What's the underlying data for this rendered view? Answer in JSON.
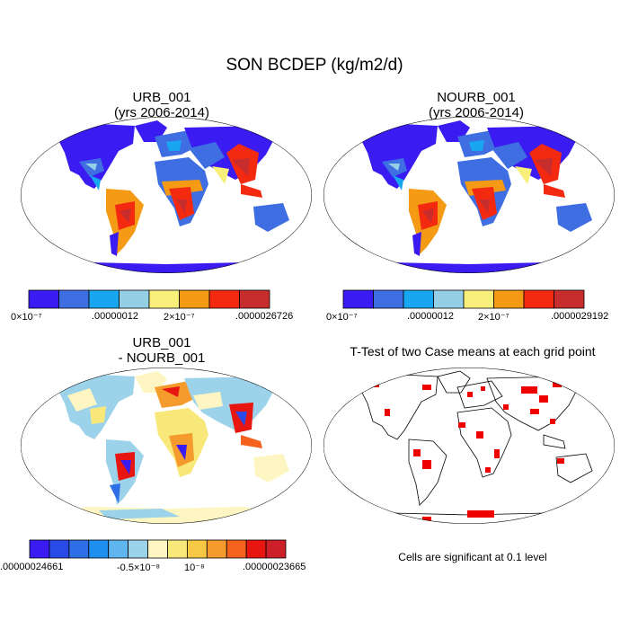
{
  "title": "SON BCDEP (kg/m2/d)",
  "panels": [
    {
      "id": "urb",
      "title_line1": "URB_001",
      "title_line2": "(yrs 2006-2014)",
      "colorbar": {
        "colors": [
          "#3a1cf2",
          "#3f6ee2",
          "#17a6ef",
          "#95cfe5",
          "#f8ef7a",
          "#f49a14",
          "#f42a10",
          "#c82d2d"
        ],
        "labels": [
          "0×10⁻⁷",
          ".00000012",
          "2×10⁻⁷",
          ".0000026726"
        ]
      }
    },
    {
      "id": "nourb",
      "title_line1": "NOURB_001",
      "title_line2": "(yrs 2006-2014)",
      "colorbar": {
        "colors": [
          "#3a1cf2",
          "#3f6ee2",
          "#17a6ef",
          "#95cfe5",
          "#f8ef7a",
          "#f49a14",
          "#f42a10",
          "#c82d2d"
        ],
        "labels": [
          "0×10⁻⁷",
          ".00000012",
          "2×10⁻⁷",
          ".0000029192"
        ]
      }
    },
    {
      "id": "diff",
      "title_line1": "URB_001",
      "title_line2": "- NOURB_001",
      "colorbar": {
        "colors": [
          "#3a1cf2",
          "#2a4ae8",
          "#2e6ee6",
          "#1f8fef",
          "#5fb5ee",
          "#9cd3ea",
          "#fdf6c2",
          "#f8e87a",
          "#f6c843",
          "#f59a2c",
          "#f4621d",
          "#e81610",
          "#cd1f2a"
        ],
        "labels": [
          ".00000024661",
          "-0.5×10⁻⁸",
          "10⁻⁸",
          ".00000023665"
        ]
      }
    },
    {
      "id": "ttest",
      "title": "T-Test of two Case means at each grid point",
      "note": "Cells are significant at 0.1 level"
    }
  ],
  "colors": {
    "ocean": "#ffffff",
    "coast": "#000000",
    "significance": "#ee0000"
  }
}
